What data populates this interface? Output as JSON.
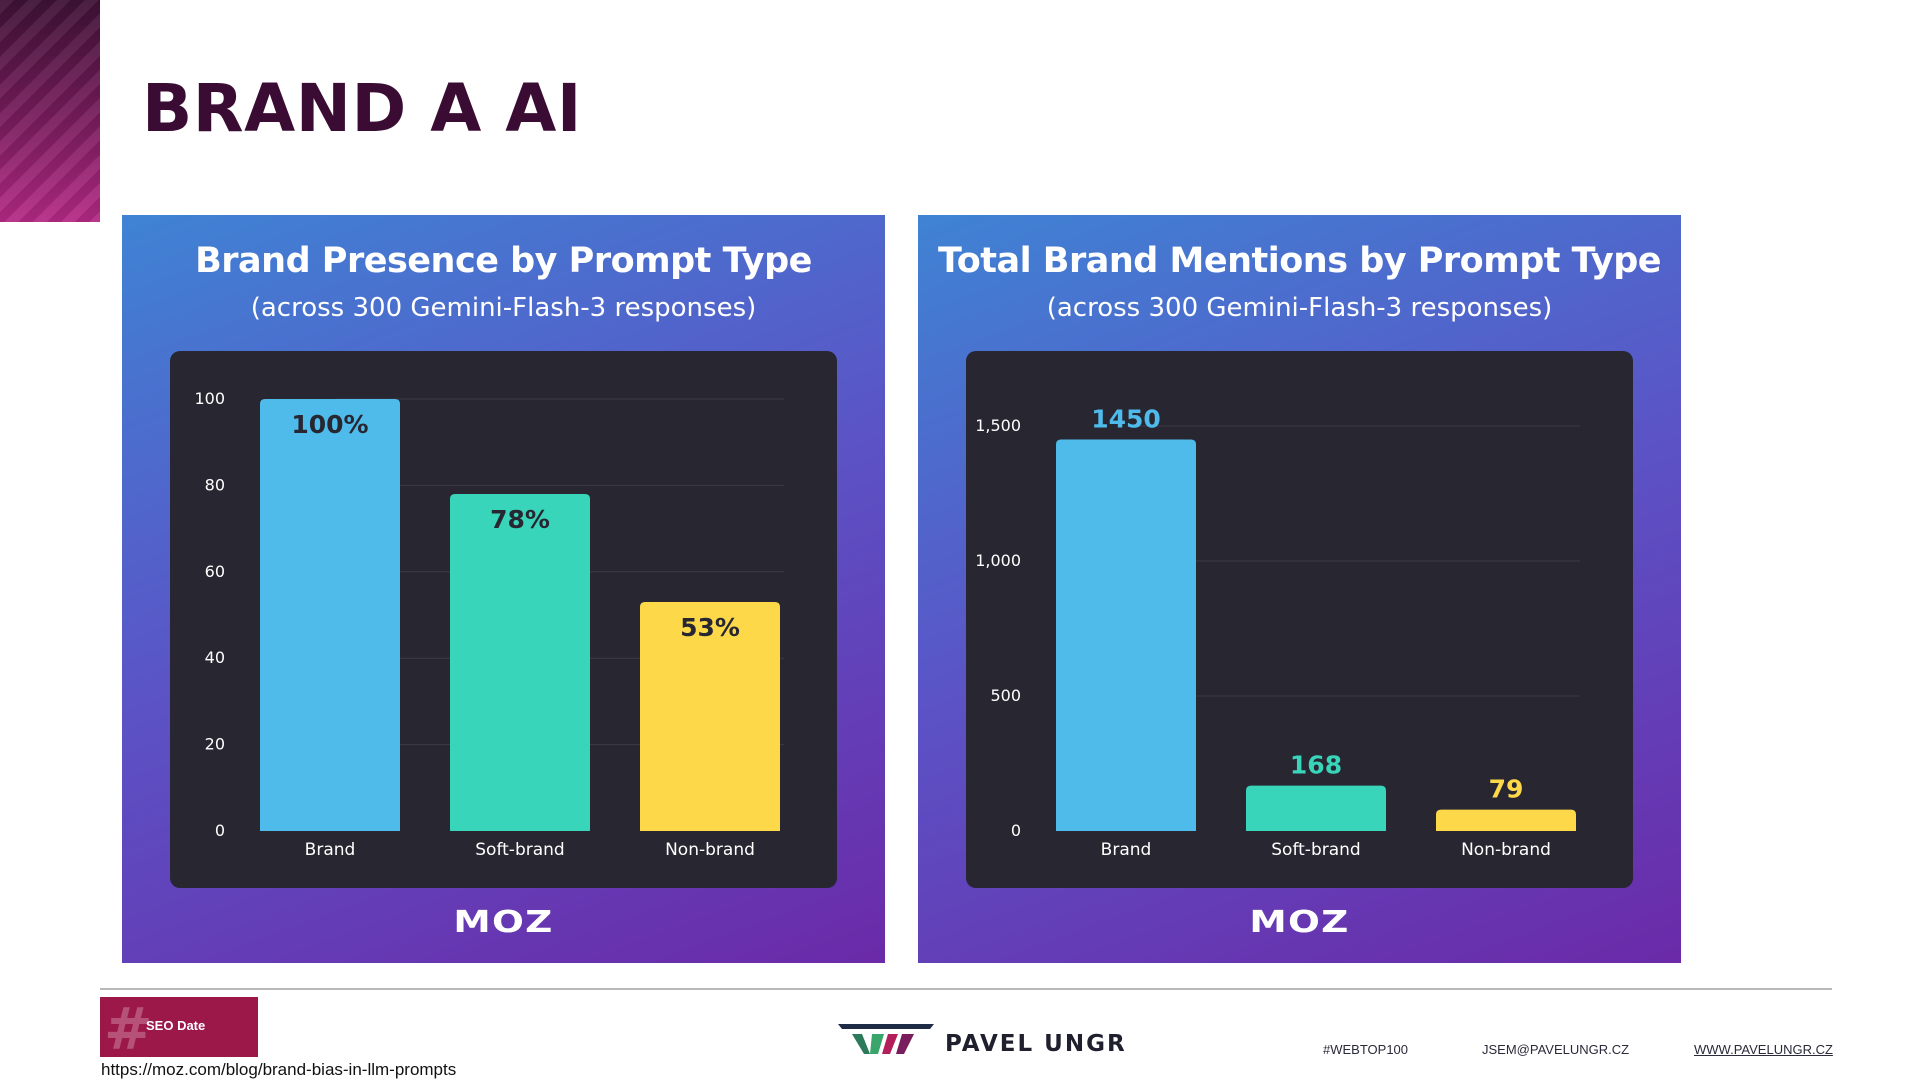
{
  "page": {
    "title": "BRAND A AI"
  },
  "chart_data": [
    {
      "type": "bar",
      "title": "Brand Presence by Prompt Type",
      "subtitle": "(across 300 Gemini-Flash-3 responses)",
      "categories": [
        "Brand",
        "Soft-brand",
        "Non-brand"
      ],
      "values": [
        100,
        78,
        53
      ],
      "data_labels": [
        "100%",
        "78%",
        "53%"
      ],
      "colors": [
        "#4fbbea",
        "#39d5ba",
        "#fdd94a"
      ],
      "label_colors": [
        "#272631",
        "#272631",
        "#272631"
      ],
      "label_position": "inside",
      "yticks": [
        0,
        20,
        40,
        60,
        80,
        100
      ],
      "ytick_labels": [
        "0",
        "20",
        "40",
        "60",
        "80",
        "100"
      ],
      "ylim": [
        0,
        100
      ],
      "xlabel": "",
      "ylabel": "",
      "grid": true,
      "logo": "MOZ"
    },
    {
      "type": "bar",
      "title": "Total Brand Mentions by Prompt Type",
      "subtitle": "(across 300 Gemini-Flash-3 responses)",
      "categories": [
        "Brand",
        "Soft-brand",
        "Non-brand"
      ],
      "values": [
        1450,
        168,
        79
      ],
      "data_labels": [
        "1450",
        "168",
        "79"
      ],
      "colors": [
        "#4fbbea",
        "#39d5ba",
        "#fdd94a"
      ],
      "label_colors": [
        "#4fbbea",
        "#39d5ba",
        "#fdd94a"
      ],
      "label_position": "above",
      "yticks": [
        0,
        500,
        1000,
        1500
      ],
      "ytick_labels": [
        "0",
        "500",
        "1,000",
        "1,500"
      ],
      "ylim": [
        0,
        1600
      ],
      "xlabel": "",
      "ylabel": "",
      "grid": true,
      "logo": "MOZ"
    }
  ],
  "footer": {
    "event_badge": "SEO Date",
    "source_url": "https://moz.com/blog/brand-bias-in-llm-prompts",
    "brand_name": "PAVEL UNGR",
    "hashtag": "#WEBTOP100",
    "email": "JSEM@PAVELUNGR.CZ",
    "website": "WWW.PAVELUNGR.CZ",
    "colors": {
      "title": "#3b0c33",
      "badge": "#9c1848"
    }
  }
}
